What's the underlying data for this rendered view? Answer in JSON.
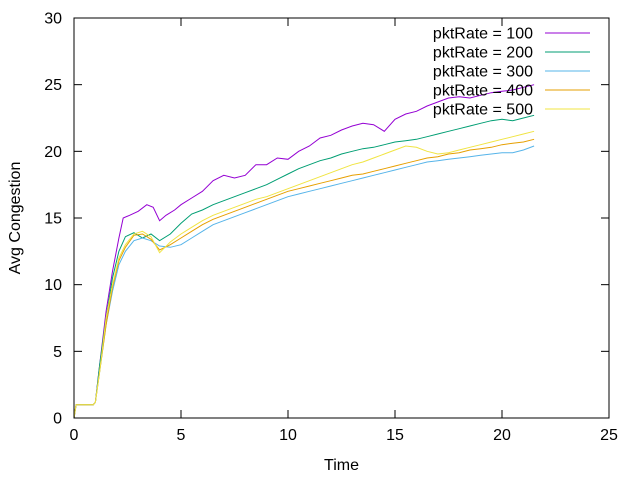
{
  "chart_data": {
    "type": "line",
    "xlabel": "Time",
    "ylabel": "Avg Congestion",
    "xlim": [
      0,
      25
    ],
    "ylim": [
      0,
      30
    ],
    "xticks": [
      0,
      5,
      10,
      15,
      20,
      25
    ],
    "yticks": [
      0,
      5,
      10,
      15,
      20,
      25,
      30
    ],
    "grid": false,
    "legend_position": "top-right",
    "series": [
      {
        "name": "pktRate = 100",
        "color": "#9400d3",
        "points": [
          [
            0,
            0
          ],
          [
            0.1,
            1
          ],
          [
            0.9,
            1
          ],
          [
            1,
            1.2
          ],
          [
            1.2,
            4
          ],
          [
            1.5,
            8
          ],
          [
            1.8,
            11
          ],
          [
            2.1,
            13.5
          ],
          [
            2.3,
            15
          ],
          [
            2.6,
            15.2
          ],
          [
            3,
            15.5
          ],
          [
            3.4,
            16
          ],
          [
            3.7,
            15.8
          ],
          [
            4,
            14.8
          ],
          [
            4.3,
            15.2
          ],
          [
            4.7,
            15.6
          ],
          [
            5,
            16
          ],
          [
            5.5,
            16.5
          ],
          [
            6,
            17
          ],
          [
            6.5,
            17.8
          ],
          [
            7,
            18.2
          ],
          [
            7.5,
            18
          ],
          [
            8,
            18.2
          ],
          [
            8.5,
            19
          ],
          [
            9,
            19
          ],
          [
            9.5,
            19.5
          ],
          [
            10,
            19.4
          ],
          [
            10.5,
            20
          ],
          [
            11,
            20.4
          ],
          [
            11.5,
            21
          ],
          [
            12,
            21.2
          ],
          [
            12.5,
            21.6
          ],
          [
            13,
            21.9
          ],
          [
            13.5,
            22.1
          ],
          [
            14,
            22
          ],
          [
            14.5,
            21.5
          ],
          [
            15,
            22.4
          ],
          [
            15.5,
            22.8
          ],
          [
            16,
            23
          ],
          [
            16.5,
            23.4
          ],
          [
            17,
            23.7
          ],
          [
            17.5,
            24
          ],
          [
            18,
            24.1
          ],
          [
            18.5,
            24
          ],
          [
            19,
            24.2
          ],
          [
            19.5,
            24.4
          ],
          [
            20,
            24.5
          ],
          [
            20.5,
            24.6
          ],
          [
            21,
            24.8
          ],
          [
            21.5,
            25
          ]
        ]
      },
      {
        "name": "pktRate = 200",
        "color": "#009e73",
        "points": [
          [
            0,
            0
          ],
          [
            0.1,
            1
          ],
          [
            0.9,
            1
          ],
          [
            1,
            1.2
          ],
          [
            1.2,
            4
          ],
          [
            1.5,
            7.5
          ],
          [
            1.8,
            10.5
          ],
          [
            2.1,
            12.5
          ],
          [
            2.4,
            13.6
          ],
          [
            2.8,
            13.9
          ],
          [
            3.2,
            13.5
          ],
          [
            3.6,
            13.8
          ],
          [
            4,
            13.3
          ],
          [
            4.5,
            13.8
          ],
          [
            5,
            14.6
          ],
          [
            5.5,
            15.3
          ],
          [
            6,
            15.6
          ],
          [
            6.5,
            16
          ],
          [
            7,
            16.3
          ],
          [
            7.5,
            16.6
          ],
          [
            8,
            16.9
          ],
          [
            8.5,
            17.2
          ],
          [
            9,
            17.5
          ],
          [
            9.5,
            17.9
          ],
          [
            10,
            18.3
          ],
          [
            10.5,
            18.7
          ],
          [
            11,
            19
          ],
          [
            11.5,
            19.3
          ],
          [
            12,
            19.5
          ],
          [
            12.5,
            19.8
          ],
          [
            13,
            20
          ],
          [
            13.5,
            20.2
          ],
          [
            14,
            20.3
          ],
          [
            14.5,
            20.5
          ],
          [
            15,
            20.7
          ],
          [
            15.5,
            20.8
          ],
          [
            16,
            20.9
          ],
          [
            16.5,
            21.1
          ],
          [
            17,
            21.3
          ],
          [
            17.5,
            21.5
          ],
          [
            18,
            21.7
          ],
          [
            18.5,
            21.9
          ],
          [
            19,
            22.1
          ],
          [
            19.5,
            22.3
          ],
          [
            20,
            22.4
          ],
          [
            20.5,
            22.3
          ],
          [
            21,
            22.5
          ],
          [
            21.5,
            22.7
          ]
        ]
      },
      {
        "name": "pktRate = 300",
        "color": "#56b4e9",
        "points": [
          [
            0,
            0
          ],
          [
            0.1,
            1
          ],
          [
            0.9,
            1
          ],
          [
            1,
            1.2
          ],
          [
            1.2,
            3.5
          ],
          [
            1.5,
            7
          ],
          [
            1.8,
            9.5
          ],
          [
            2.1,
            11.5
          ],
          [
            2.4,
            12.5
          ],
          [
            2.8,
            13.3
          ],
          [
            3.2,
            13.5
          ],
          [
            3.6,
            13.3
          ],
          [
            4,
            12.9
          ],
          [
            4.5,
            12.8
          ],
          [
            5,
            13
          ],
          [
            5.5,
            13.5
          ],
          [
            6,
            14
          ],
          [
            6.5,
            14.5
          ],
          [
            7,
            14.8
          ],
          [
            7.5,
            15.1
          ],
          [
            8,
            15.4
          ],
          [
            8.5,
            15.7
          ],
          [
            9,
            16
          ],
          [
            9.5,
            16.3
          ],
          [
            10,
            16.6
          ],
          [
            10.5,
            16.8
          ],
          [
            11,
            17
          ],
          [
            11.5,
            17.2
          ],
          [
            12,
            17.4
          ],
          [
            12.5,
            17.6
          ],
          [
            13,
            17.8
          ],
          [
            13.5,
            18
          ],
          [
            14,
            18.2
          ],
          [
            14.5,
            18.4
          ],
          [
            15,
            18.6
          ],
          [
            15.5,
            18.8
          ],
          [
            16,
            19
          ],
          [
            16.5,
            19.2
          ],
          [
            17,
            19.3
          ],
          [
            17.5,
            19.4
          ],
          [
            18,
            19.5
          ],
          [
            18.5,
            19.6
          ],
          [
            19,
            19.7
          ],
          [
            19.5,
            19.8
          ],
          [
            20,
            19.9
          ],
          [
            20.5,
            19.9
          ],
          [
            21,
            20.1
          ],
          [
            21.5,
            20.4
          ]
        ]
      },
      {
        "name": "pktRate = 400",
        "color": "#e69f00",
        "points": [
          [
            0,
            0
          ],
          [
            0.1,
            1
          ],
          [
            0.9,
            1
          ],
          [
            1,
            1.2
          ],
          [
            1.2,
            3.5
          ],
          [
            1.5,
            7
          ],
          [
            1.8,
            9.8
          ],
          [
            2.1,
            11.8
          ],
          [
            2.4,
            12.8
          ],
          [
            2.8,
            13.7
          ],
          [
            3.2,
            13.8
          ],
          [
            3.6,
            13.4
          ],
          [
            4,
            12.6
          ],
          [
            4.5,
            13
          ],
          [
            5,
            13.5
          ],
          [
            5.5,
            14
          ],
          [
            6,
            14.5
          ],
          [
            6.5,
            14.9
          ],
          [
            7,
            15.2
          ],
          [
            7.5,
            15.5
          ],
          [
            8,
            15.8
          ],
          [
            8.5,
            16.1
          ],
          [
            9,
            16.4
          ],
          [
            9.5,
            16.7
          ],
          [
            10,
            17
          ],
          [
            10.5,
            17.2
          ],
          [
            11,
            17.4
          ],
          [
            11.5,
            17.6
          ],
          [
            12,
            17.8
          ],
          [
            12.5,
            18
          ],
          [
            13,
            18.2
          ],
          [
            13.5,
            18.3
          ],
          [
            14,
            18.5
          ],
          [
            14.5,
            18.7
          ],
          [
            15,
            18.9
          ],
          [
            15.5,
            19.1
          ],
          [
            16,
            19.3
          ],
          [
            16.5,
            19.5
          ],
          [
            17,
            19.6
          ],
          [
            17.5,
            19.8
          ],
          [
            18,
            19.9
          ],
          [
            18.5,
            20.1
          ],
          [
            19,
            20.2
          ],
          [
            19.5,
            20.3
          ],
          [
            20,
            20.5
          ],
          [
            20.5,
            20.6
          ],
          [
            21,
            20.7
          ],
          [
            21.5,
            20.9
          ]
        ]
      },
      {
        "name": "pktRate = 500",
        "color": "#f0e442",
        "points": [
          [
            0,
            0
          ],
          [
            0.1,
            1
          ],
          [
            0.9,
            1
          ],
          [
            1,
            1.2
          ],
          [
            1.2,
            3.5
          ],
          [
            1.5,
            7.5
          ],
          [
            1.8,
            10
          ],
          [
            2.1,
            12
          ],
          [
            2.4,
            13
          ],
          [
            2.8,
            13.8
          ],
          [
            3.2,
            14
          ],
          [
            3.6,
            13.6
          ],
          [
            4,
            12.4
          ],
          [
            4.5,
            13.2
          ],
          [
            5,
            13.8
          ],
          [
            5.5,
            14.3
          ],
          [
            6,
            14.8
          ],
          [
            6.5,
            15.2
          ],
          [
            7,
            15.5
          ],
          [
            7.5,
            15.8
          ],
          [
            8,
            16.1
          ],
          [
            8.5,
            16.4
          ],
          [
            9,
            16.6
          ],
          [
            9.5,
            16.9
          ],
          [
            10,
            17.2
          ],
          [
            10.5,
            17.5
          ],
          [
            11,
            17.8
          ],
          [
            11.5,
            18.1
          ],
          [
            12,
            18.4
          ],
          [
            12.5,
            18.7
          ],
          [
            13,
            19
          ],
          [
            13.5,
            19.2
          ],
          [
            14,
            19.5
          ],
          [
            14.5,
            19.8
          ],
          [
            15,
            20.1
          ],
          [
            15.5,
            20.4
          ],
          [
            16,
            20.3
          ],
          [
            16.5,
            20
          ],
          [
            17,
            19.8
          ],
          [
            17.5,
            19.9
          ],
          [
            18,
            20.1
          ],
          [
            18.5,
            20.3
          ],
          [
            19,
            20.5
          ],
          [
            19.5,
            20.7
          ],
          [
            20,
            20.9
          ],
          [
            20.5,
            21.1
          ],
          [
            21,
            21.3
          ],
          [
            21.5,
            21.5
          ]
        ]
      }
    ]
  }
}
